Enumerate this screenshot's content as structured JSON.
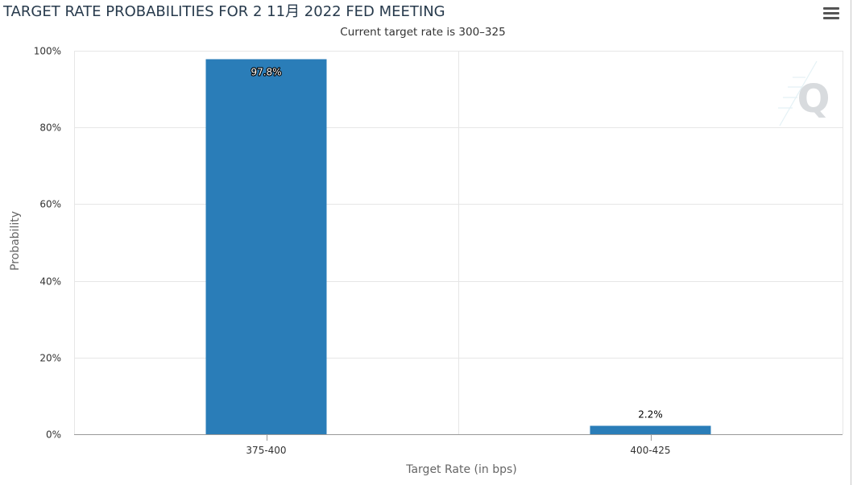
{
  "title": "TARGET RATE PROBABILITIES FOR 2 11月 2022 FED MEETING",
  "subtitle": "Current target rate is 300–325",
  "menu_icon": "hamburger-menu-icon",
  "watermark_icon": "q-logo-icon",
  "colors": {
    "bar": "#2a7db8",
    "grid": "#e6e6e6",
    "axis": "#999999",
    "text": "#333333",
    "title": "#273a4c"
  },
  "chart_data": {
    "type": "bar",
    "categories": [
      "375-400",
      "400-425"
    ],
    "values": [
      97.8,
      2.2
    ],
    "data_labels": [
      "97.8%",
      "2.2%"
    ],
    "title": "TARGET RATE PROBABILITIES FOR 2 11月 2022 FED MEETING",
    "subtitle": "Current target rate is 300–325",
    "xlabel": "Target Rate (in bps)",
    "ylabel": "Probability",
    "ylim": [
      0,
      100
    ],
    "yticks": [
      0,
      20,
      40,
      60,
      80,
      100
    ],
    "ytick_labels": [
      "0%",
      "20%",
      "40%",
      "60%",
      "80%",
      "100%"
    ],
    "grid": true,
    "legend": "none"
  }
}
